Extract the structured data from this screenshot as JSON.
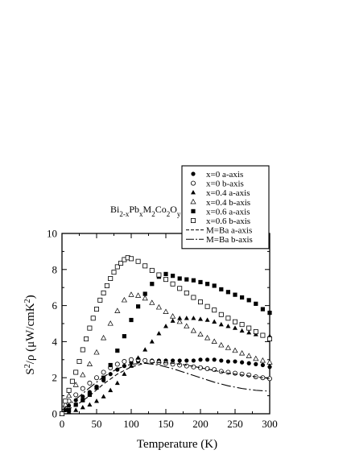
{
  "chart_data": {
    "type": "scatter",
    "title_parts": [
      {
        "t": "Bi",
        "sub": false
      },
      {
        "t": "2-x",
        "sub": true
      },
      {
        "t": "Pb",
        "sub": false
      },
      {
        "t": "x",
        "sub": true
      },
      {
        "t": "M",
        "sub": false
      },
      {
        "t": "2",
        "sub": true
      },
      {
        "t": "Co",
        "sub": false
      },
      {
        "t": "2",
        "sub": true
      },
      {
        "t": "O",
        "sub": false
      },
      {
        "t": "y",
        "sub": true
      }
    ],
    "xlabel": "Temperature (K)",
    "ylabel_parts": [
      {
        "t": "S",
        "sup": false
      },
      {
        "t": "2",
        "sup": true
      },
      {
        "t": "/ρ (μW/cmK",
        "sup": false
      },
      {
        "t": "2",
        "sup": true
      },
      {
        "t": ")",
        "sup": false
      }
    ],
    "xlim": [
      0,
      300
    ],
    "ylim": [
      0,
      10
    ],
    "xticks": [
      0,
      50,
      100,
      150,
      200,
      250,
      300
    ],
    "yticks": [
      0,
      2,
      4,
      6,
      8,
      10
    ],
    "grid": false,
    "legend_position": "top-right",
    "series": [
      {
        "name": "x=0 a-axis",
        "marker": "circle-filled",
        "x": [
          0,
          5,
          10,
          20,
          30,
          40,
          50,
          60,
          70,
          80,
          90,
          100,
          110,
          120,
          130,
          140,
          150,
          160,
          170,
          180,
          190,
          200,
          210,
          220,
          230,
          240,
          250,
          260,
          270,
          280,
          290,
          300
        ],
        "y": [
          0,
          0.2,
          0.45,
          0.75,
          0.95,
          1.2,
          1.5,
          1.85,
          2.2,
          2.45,
          2.65,
          2.85,
          2.9,
          2.95,
          2.95,
          2.95,
          2.95,
          2.95,
          2.95,
          2.95,
          2.95,
          3.0,
          3.0,
          3.0,
          2.95,
          2.9,
          2.9,
          2.85,
          2.8,
          2.75,
          2.7,
          2.6
        ]
      },
      {
        "name": "x=0 b-axis",
        "marker": "circle-open",
        "x": [
          0,
          5,
          10,
          20,
          30,
          40,
          50,
          60,
          70,
          80,
          90,
          100,
          110,
          120,
          130,
          140,
          150,
          160,
          170,
          180,
          190,
          200,
          210,
          220,
          230,
          240,
          250,
          260,
          270,
          280,
          290,
          300
        ],
        "y": [
          0,
          0.4,
          0.7,
          1.05,
          1.4,
          1.7,
          2.0,
          2.3,
          2.55,
          2.75,
          2.9,
          3.0,
          3.0,
          2.95,
          2.9,
          2.85,
          2.8,
          2.75,
          2.7,
          2.65,
          2.6,
          2.55,
          2.5,
          2.45,
          2.35,
          2.3,
          2.25,
          2.2,
          2.15,
          2.05,
          2.0,
          1.95
        ]
      },
      {
        "name": "x=0.4 a-axis",
        "marker": "triangle-filled",
        "x": [
          0,
          10,
          20,
          30,
          40,
          50,
          60,
          70,
          80,
          90,
          100,
          110,
          120,
          130,
          140,
          150,
          160,
          170,
          180,
          190,
          200,
          210,
          220,
          230,
          240,
          250,
          260,
          270,
          280,
          290,
          300
        ],
        "y": [
          0,
          0.1,
          0.2,
          0.35,
          0.5,
          0.7,
          0.95,
          1.3,
          1.7,
          2.2,
          2.65,
          3.1,
          3.55,
          4.0,
          4.45,
          4.85,
          5.15,
          5.3,
          5.3,
          5.3,
          5.25,
          5.2,
          5.1,
          4.95,
          4.85,
          4.75,
          4.6,
          4.5,
          4.4,
          4.35,
          4.3
        ]
      },
      {
        "name": "x=0.4 b-axis",
        "marker": "triangle-open",
        "x": [
          0,
          5,
          10,
          20,
          30,
          40,
          50,
          60,
          70,
          80,
          90,
          100,
          110,
          120,
          130,
          140,
          150,
          160,
          170,
          180,
          190,
          200,
          210,
          220,
          230,
          240,
          250,
          260,
          270,
          280,
          290,
          300
        ],
        "y": [
          0,
          0.5,
          1.0,
          1.6,
          2.15,
          2.75,
          3.4,
          4.2,
          5.0,
          5.7,
          6.3,
          6.6,
          6.55,
          6.4,
          6.15,
          5.9,
          5.65,
          5.4,
          5.1,
          4.85,
          4.6,
          4.4,
          4.2,
          4.0,
          3.8,
          3.65,
          3.5,
          3.35,
          3.2,
          3.05,
          2.95,
          2.85
        ]
      },
      {
        "name": "x=0.6 a-axis",
        "marker": "square-filled",
        "x": [
          0,
          10,
          20,
          30,
          40,
          50,
          60,
          70,
          80,
          90,
          100,
          110,
          120,
          130,
          140,
          150,
          160,
          170,
          180,
          190,
          200,
          210,
          220,
          230,
          240,
          250,
          260,
          270,
          280,
          290,
          300
        ],
        "y": [
          0,
          0.2,
          0.5,
          0.75,
          1.05,
          1.45,
          2.0,
          2.7,
          3.5,
          4.3,
          5.2,
          5.95,
          6.65,
          7.2,
          7.6,
          7.75,
          7.65,
          7.5,
          7.45,
          7.4,
          7.3,
          7.2,
          7.1,
          6.9,
          6.75,
          6.6,
          6.45,
          6.3,
          6.1,
          5.8,
          5.6
        ]
      },
      {
        "name": "x=0.6 b-axis",
        "marker": "square-open",
        "x": [
          0,
          5,
          10,
          15,
          20,
          25,
          30,
          35,
          40,
          45,
          50,
          55,
          60,
          65,
          70,
          75,
          80,
          85,
          90,
          95,
          100,
          110,
          120,
          130,
          140,
          150,
          160,
          170,
          180,
          190,
          200,
          210,
          220,
          230,
          240,
          250,
          260,
          270,
          280,
          290,
          300
        ],
        "y": [
          0,
          0.7,
          1.3,
          1.8,
          2.3,
          2.9,
          3.55,
          4.15,
          4.75,
          5.3,
          5.8,
          6.3,
          6.7,
          7.1,
          7.5,
          7.85,
          8.15,
          8.35,
          8.55,
          8.65,
          8.6,
          8.45,
          8.2,
          7.95,
          7.7,
          7.45,
          7.2,
          6.95,
          6.7,
          6.45,
          6.2,
          5.95,
          5.75,
          5.5,
          5.3,
          5.1,
          4.95,
          4.75,
          4.55,
          4.35,
          4.15
        ]
      },
      {
        "name": "M=Ba a-axis",
        "marker": "line-dashed",
        "x": [
          0,
          20,
          40,
          60,
          80,
          100,
          120,
          140,
          160,
          180,
          200,
          220,
          240,
          260,
          280,
          300
        ],
        "y": [
          0.1,
          0.45,
          1.0,
          1.65,
          2.2,
          2.6,
          2.8,
          2.85,
          2.8,
          2.7,
          2.55,
          2.4,
          2.25,
          2.15,
          2.05,
          1.95
        ]
      },
      {
        "name": "M=Ba b-axis",
        "marker": "line-dashdot",
        "x": [
          0,
          20,
          40,
          60,
          80,
          100,
          120,
          140,
          160,
          180,
          200,
          220,
          240,
          260,
          280,
          300
        ],
        "y": [
          0.2,
          0.8,
          1.45,
          2.05,
          2.5,
          2.75,
          2.8,
          2.7,
          2.5,
          2.25,
          2.0,
          1.75,
          1.55,
          1.4,
          1.3,
          1.25
        ]
      }
    ]
  }
}
